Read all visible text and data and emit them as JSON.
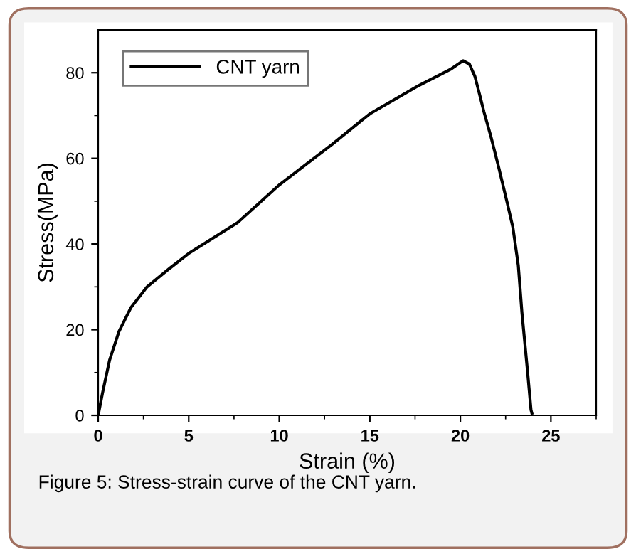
{
  "chart_data": {
    "type": "line",
    "xlabel": "Strain (%)",
    "ylabel": "Stress(MPa)",
    "annotations": [
      "Figure 5: Stress-strain curve of the CNT yarn."
    ],
    "xlim": [
      0,
      27.5
    ],
    "ylim": [
      0,
      90
    ],
    "xticks": [
      0,
      5,
      10,
      15,
      20,
      25
    ],
    "yticks": [
      0,
      20,
      40,
      60,
      80
    ],
    "grid": false,
    "legend": "top left",
    "marker": "none",
    "line_style": "solid",
    "series": [
      {
        "name": "CNT yarn",
        "color": "#000000",
        "x": [
          0,
          0.24,
          0.63,
          1.15,
          1.8,
          2.7,
          4.0,
          5.0,
          7.7,
          10,
          12.9,
          15,
          17.7,
          19.5,
          20.15,
          20.5,
          20.8,
          21.1,
          21.3,
          21.7,
          22.1,
          22.6,
          22.9,
          23.2,
          23.4,
          23.7,
          23.9,
          23.95
        ],
        "values": [
          0,
          5.2,
          12.9,
          19.6,
          25.1,
          30,
          34.5,
          37.8,
          45,
          53.8,
          63.2,
          70.4,
          77,
          80.9,
          82.8,
          82,
          79.2,
          74.3,
          70.9,
          64.9,
          58.2,
          49.4,
          43.9,
          35,
          24,
          10.7,
          1.3,
          0.5
        ]
      }
    ]
  }
}
